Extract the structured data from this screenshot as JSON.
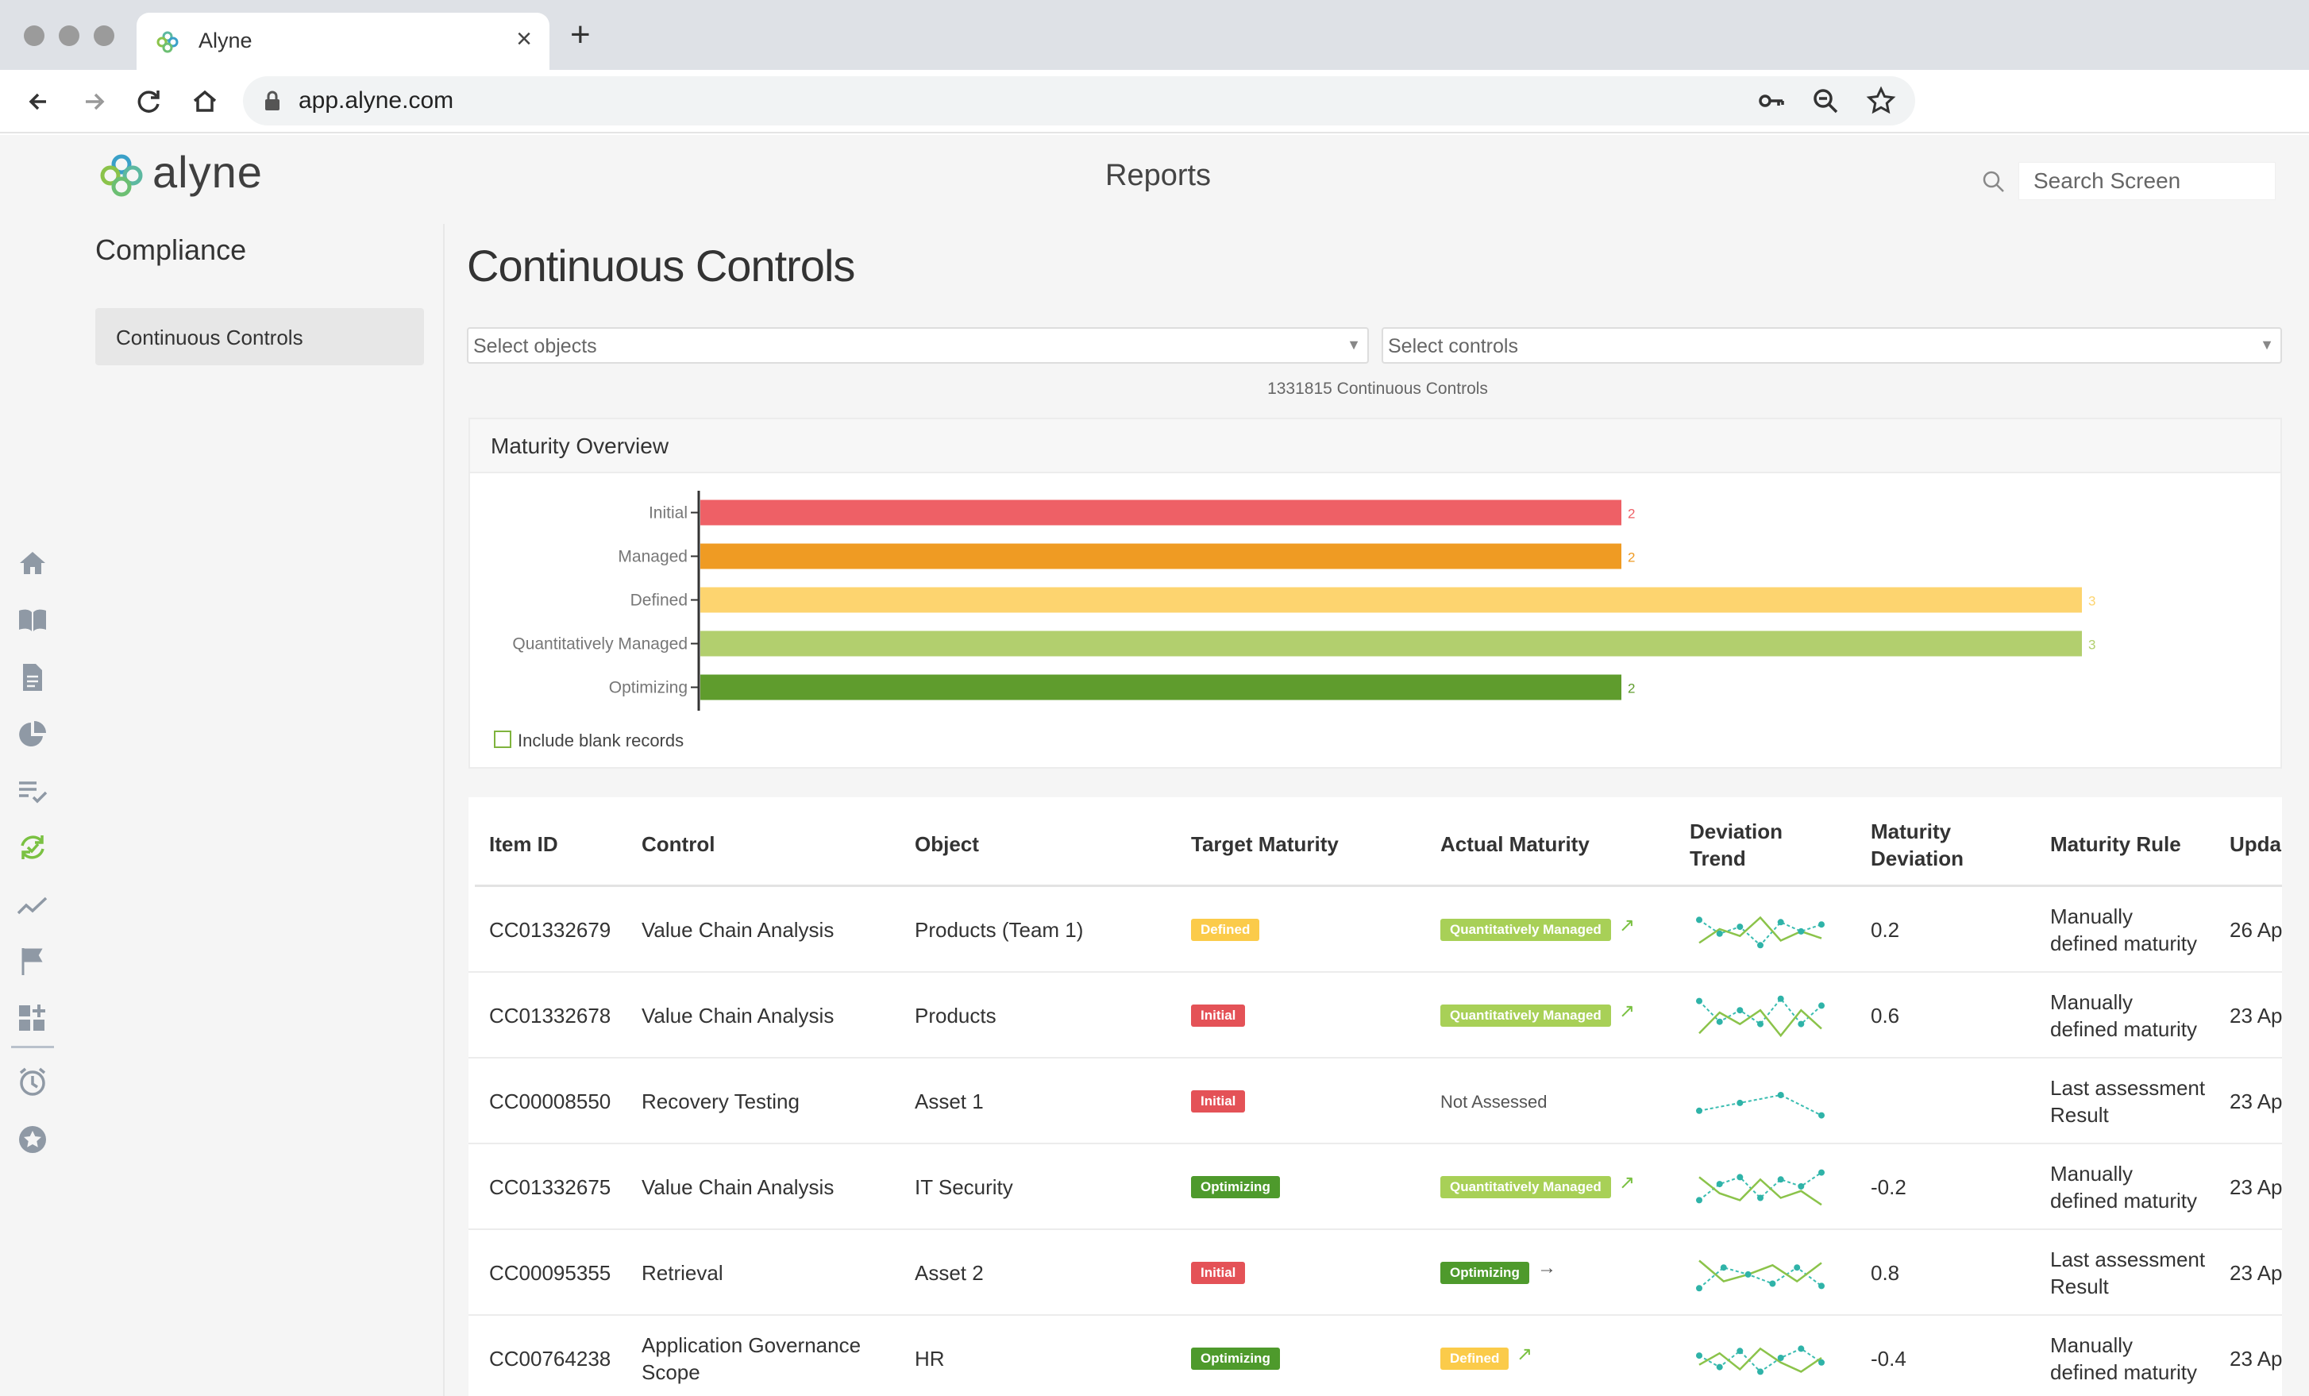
{
  "browser": {
    "tab_title": "Alyne",
    "tab_close": "×",
    "new_tab": "+",
    "url": "app.alyne.com"
  },
  "app": {
    "brand": "alyne",
    "header_title": "Reports",
    "search_placeholder": "Search Screen"
  },
  "sidebar": {
    "section_title": "Compliance",
    "items": [
      {
        "label": "Continuous Controls"
      }
    ]
  },
  "icon_rail": [
    "home-icon",
    "book-icon",
    "document-icon",
    "pie-chart-icon",
    "checklist-icon",
    "sync-icon",
    "trend-line-icon",
    "flag-icon",
    "dashboard-add-icon",
    "clock-icon",
    "star-icon"
  ],
  "main": {
    "title": "Continuous Controls",
    "objects_placeholder": "Select objects",
    "controls_placeholder": "Select controls",
    "count_text": "1331815 Continuous Controls"
  },
  "chart": {
    "panel_title": "Maturity Overview",
    "include_blank_label": "Include blank records"
  },
  "chart_data": {
    "type": "bar",
    "orientation": "horizontal",
    "categories": [
      "Initial",
      "Managed",
      "Defined",
      "Quantitatively Managed",
      "Optimizing"
    ],
    "values": [
      2,
      2,
      3,
      3,
      2
    ],
    "colors": [
      "#ee6066",
      "#ef9b23",
      "#fdd46f",
      "#b2cf6e",
      "#5f9c2d"
    ],
    "xlim": [
      0,
      3
    ]
  },
  "badge_colors": {
    "Initial": "#e45257",
    "Managed": "#ef9b23",
    "Defined": "#fbcb4a",
    "Quantitatively Managed": "#a8d057",
    "Optimizing": "#4e9a2c"
  },
  "table": {
    "columns": [
      {
        "label": "Item ID"
      },
      {
        "label": "Control"
      },
      {
        "label": "Object"
      },
      {
        "label": "Target Maturity"
      },
      {
        "label": "Actual Maturity"
      },
      {
        "label": "Deviation\nTrend"
      },
      {
        "label": "Maturity\nDeviation"
      },
      {
        "label": "Maturity Rule"
      },
      {
        "label": "Upda"
      }
    ],
    "rows": [
      {
        "id": "CC01332679",
        "control": "Value Chain Analysis",
        "object": "Products (Team 1)",
        "target": "Defined",
        "actual": "Quantitatively Managed",
        "trend_icon": "↗",
        "deviation": "0.2",
        "rule": "Manually\ndefined maturity",
        "updated": "26 Ap",
        "spark": [
          0.3,
          0.6,
          0.45,
          0.85,
          0.35,
          0.55,
          0.4
        ]
      },
      {
        "id": "CC01332678",
        "control": "Value Chain Analysis",
        "object": "Products",
        "target": "Initial",
        "actual": "Quantitatively Managed",
        "trend_icon": "↗",
        "deviation": "0.6",
        "rule": "Manually\ndefined maturity",
        "updated": "23 Ap",
        "spark": [
          0.2,
          0.65,
          0.4,
          0.7,
          0.15,
          0.7,
          0.3
        ]
      },
      {
        "id": "CC00008550",
        "control": "Recovery Testing",
        "object": "Asset 1",
        "target": "Initial",
        "actual": "Not Assessed",
        "trend_icon": "",
        "deviation": "",
        "rule": "Last assessment\nResult",
        "updated": "23 Ap",
        "spark": [
          0.72,
          0.55,
          0.38,
          0.82
        ]
      },
      {
        "id": "CC01332675",
        "control": "Value Chain Analysis",
        "object": "IT Security",
        "target": "Optimizing",
        "actual": "Quantitatively Managed",
        "trend_icon": "↗",
        "deviation": "-0.2",
        "rule": "Manually\ndefined maturity",
        "updated": "23 Ap",
        "spark": [
          0.8,
          0.45,
          0.3,
          0.75,
          0.35,
          0.5,
          0.2
        ]
      },
      {
        "id": "CC00095355",
        "control": "Retrieval",
        "object": "Asset 2",
        "target": "Initial",
        "actual": "Optimizing",
        "trend_icon": "→",
        "deviation": "0.8",
        "rule": "Last assessment\nResult",
        "updated": "23 Ap",
        "spark": [
          0.85,
          0.4,
          0.55,
          0.75,
          0.4,
          0.8
        ]
      },
      {
        "id": "CC00764238",
        "control": "Application Governance\nScope",
        "object": "HR",
        "target": "Optimizing",
        "actual": "Defined",
        "trend_icon": "↗",
        "deviation": "-0.4",
        "rule": "Manually\ndefined maturity",
        "updated": "23 Ap",
        "spark": [
          0.45,
          0.7,
          0.35,
          0.8,
          0.5,
          0.3,
          0.6
        ]
      }
    ]
  }
}
